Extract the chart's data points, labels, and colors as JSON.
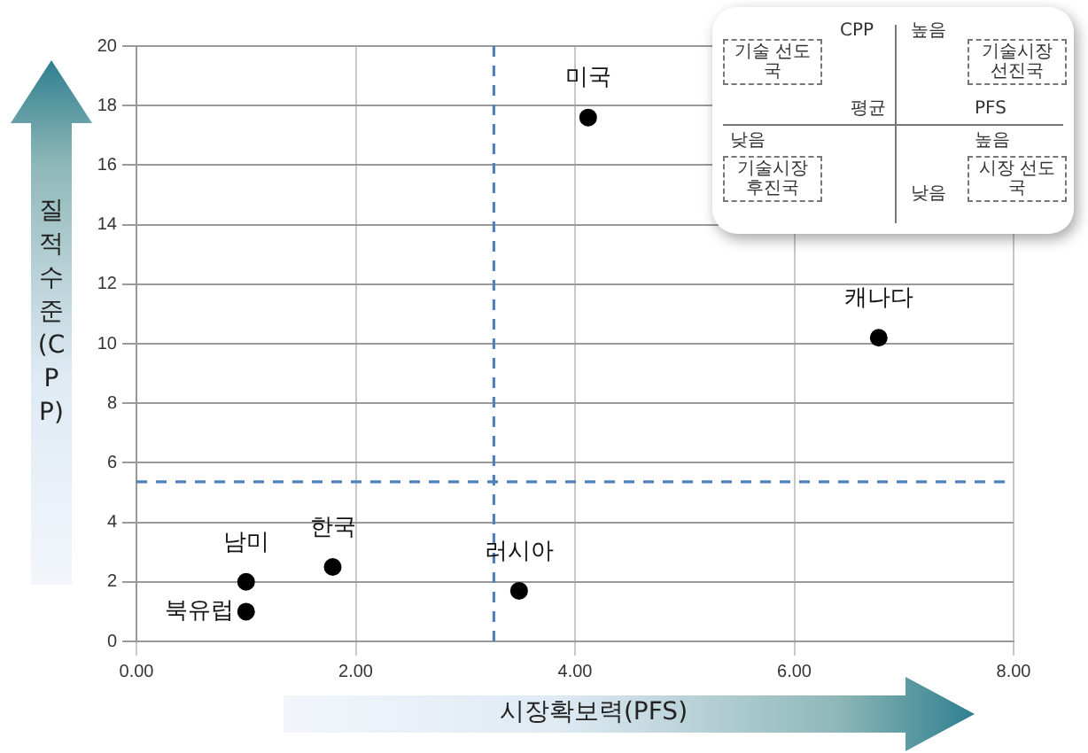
{
  "chart_data": {
    "type": "scatter",
    "xlabel": "시장확보력(PFS)",
    "ylabel": "질적수준(CPP)",
    "xlim": [
      0,
      8
    ],
    "ylim": [
      0,
      20
    ],
    "xticks": [
      {
        "value": 0,
        "label": "0.00"
      },
      {
        "value": 2,
        "label": "2.00"
      },
      {
        "value": 4,
        "label": "4.00"
      },
      {
        "value": 6,
        "label": "6.00"
      },
      {
        "value": 8,
        "label": "8.00"
      }
    ],
    "yticks": [
      0,
      2,
      4,
      6,
      8,
      10,
      12,
      14,
      16,
      18,
      20
    ],
    "grid": true,
    "legend": false,
    "marker": "circle",
    "series": [
      {
        "color": "#000000",
        "x": [
          1.0,
          1.0,
          1.79,
          3.49,
          4.12,
          6.77
        ],
        "values": [
          2.0,
          1.0,
          2.5,
          1.7,
          17.6,
          10.2
        ]
      }
    ],
    "ref_lines": [
      {
        "axis": "x",
        "value": 3.26,
        "color": "#4f81bd",
        "line_style": "dashed"
      },
      {
        "axis": "y",
        "value": 5.36,
        "color": "#4f81bd",
        "line_style": "dashed"
      }
    ],
    "annotations": [
      {
        "text": "남미",
        "x": 1.0,
        "y": 2.0
      },
      {
        "text": "북유럽",
        "x": 1.0,
        "y": 1.0
      },
      {
        "text": "한국",
        "x": 1.79,
        "y": 2.5
      },
      {
        "text": "러시아",
        "x": 3.49,
        "y": 1.7
      },
      {
        "text": "미국",
        "x": 4.12,
        "y": 17.6
      },
      {
        "text": "캐나다",
        "x": 6.77,
        "y": 10.2
      },
      "CPP",
      "높음",
      "기술 선도국",
      "기술시장 선진국",
      "낮음",
      "평균",
      "PFS",
      "높음",
      "기술시장 후진국",
      "시장 선도국",
      "낮음"
    ]
  }
}
